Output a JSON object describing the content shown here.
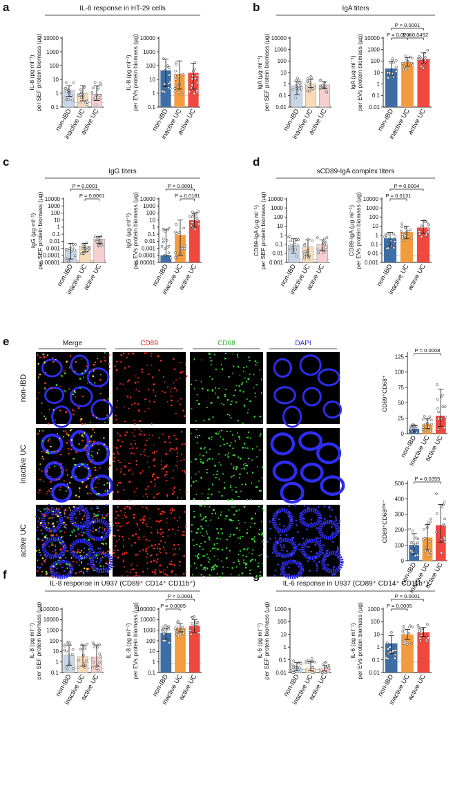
{
  "colors": {
    "nonibd": "#3d6fa6",
    "inactive": "#f39c3f",
    "active": "#f0473f",
    "nonibd_light": "#c7d6e8",
    "inactive_light": "#f9dcb7",
    "active_light": "#f7cfcf"
  },
  "panels": [
    {
      "id": "a",
      "letter": "a",
      "title": "IL-8 response in HT-29 cells"
    },
    {
      "id": "b",
      "letter": "b",
      "title": "IgA titers"
    },
    {
      "id": "c",
      "letter": "c",
      "title": "IgG titers"
    },
    {
      "id": "d",
      "letter": "d",
      "title": "sCD89-IgA complex titers"
    },
    {
      "id": "e",
      "letter": "e",
      "title": ""
    },
    {
      "id": "f",
      "letter": "f",
      "title": "IL-8 response in U937 (CD89⁺ CD14⁺ CD11b⁺)"
    },
    {
      "id": "g",
      "letter": "g",
      "title": "IL-6 response in U937 (CD89⁺ CD14⁺ CD11b⁺)"
    }
  ],
  "microscopy": {
    "columns": [
      {
        "label": "Merge",
        "color": "#111111"
      },
      {
        "label": "CD89",
        "color": "#e0241b"
      },
      {
        "label": "CD68",
        "color": "#2fb52f"
      },
      {
        "label": "DAPI",
        "color": "#2a2ae0"
      }
    ],
    "rows": [
      "non-IBD",
      "inactive UC",
      "active UC"
    ]
  },
  "chart_data": [
    {
      "id": "a1",
      "type": "bar",
      "scale": "log",
      "categories": [
        "non-IBD",
        "inactive UC",
        "active UC"
      ],
      "values": [
        1.6,
        0.95,
        0.85
      ],
      "err_low": [
        0.6,
        0.28,
        0.3
      ],
      "err_high": [
        3.5,
        3.5,
        3.5
      ],
      "filled": false,
      "yticks": [
        "0.1",
        "1",
        "10",
        "100",
        "1000",
        "10000"
      ],
      "ylim": [
        0.1,
        10000
      ],
      "ylabel_lines": [
        "IL-8 (pg ml⁻¹)",
        "per SEF protein biomass (µg)"
      ],
      "threshold": 0.22,
      "pvalues": []
    },
    {
      "id": "a2",
      "type": "bar",
      "scale": "log",
      "categories": [
        "non-IBD",
        "inactive UC",
        "active UC"
      ],
      "values": [
        45,
        25,
        30
      ],
      "err_low": [
        3,
        2,
        2
      ],
      "err_high": [
        300,
        220,
        150
      ],
      "filled": true,
      "yticks": [
        "0.1",
        "1",
        "10",
        "100",
        "1000",
        "10000"
      ],
      "ylim": [
        0.1,
        10000
      ],
      "ylabel_lines": [
        "IL-8 (pg ml⁻¹)",
        "per EVs protein biomass (µg)"
      ],
      "threshold": 0.7,
      "pvalues": []
    },
    {
      "id": "b1",
      "type": "bar",
      "scale": "log",
      "categories": [
        "non-IBD",
        "inactive UC",
        "active UC"
      ],
      "values": [
        0.7,
        1.0,
        0.85
      ],
      "err_low": [
        0.12,
        0.5,
        0.4
      ],
      "err_high": [
        1.8,
        2.5,
        1.5
      ],
      "filled": false,
      "yticks": [
        "0.01",
        "0.1",
        "1",
        "10",
        "100",
        "1000",
        "10000"
      ],
      "ylim": [
        0.01,
        10000
      ],
      "ylabel_lines": [
        "IgA (µg ml⁻¹)",
        "per SEF protein biomass (µg)"
      ],
      "threshold": null,
      "pvalues": []
    },
    {
      "id": "b2",
      "type": "bar",
      "scale": "log",
      "categories": [
        "non-IBD",
        "inactive UC",
        "active UC"
      ],
      "values": [
        22,
        80,
        150
      ],
      "err_low": [
        6,
        35,
        60
      ],
      "err_high": [
        90,
        200,
        500
      ],
      "filled": true,
      "yticks": [
        "0.01",
        "0.1",
        "1",
        "10",
        "100",
        "1000",
        "10000"
      ],
      "ylim": [
        0.01,
        10000
      ],
      "ylabel_lines": [
        "IgA (µg ml⁻¹)",
        "per EVs protein biomass (µg)"
      ],
      "threshold": null,
      "pvalues": [
        {
          "from": 0,
          "to": 2,
          "level": 2,
          "text": "P < 0.0001"
        },
        {
          "from": 0,
          "to": 1,
          "level": 1,
          "text": "P = 0.0205"
        },
        {
          "from": 1,
          "to": 2,
          "level": 1,
          "text": "P = 0.0452"
        }
      ]
    },
    {
      "id": "c1",
      "type": "bar",
      "scale": "log",
      "categories": [
        "non-IBD",
        "inactive UC",
        "active UC"
      ],
      "values": [
        0.0006,
        0.002,
        0.02
      ],
      "err_low": [
        3e-05,
        0.0003,
        0.005
      ],
      "err_high": [
        0.005,
        0.005,
        0.05
      ],
      "filled": false,
      "yticks": [
        "0.00001",
        "0.0001",
        "0.001",
        "0.01",
        "0.1",
        "1",
        "10",
        "100",
        "1000",
        "10000"
      ],
      "ylim": [
        1e-05,
        10000
      ],
      "ylabel_lines": [
        "IgG (µg ml⁻¹)",
        "per SEF protein biomass (µg)"
      ],
      "threshold": 1.8e-05,
      "pvalues": [
        {
          "from": 0,
          "to": 2,
          "level": 2,
          "text": "P = 0.0001"
        },
        {
          "from": 1,
          "to": 2,
          "level": 1,
          "text": "P = 0.0061"
        }
      ]
    },
    {
      "id": "c2",
      "type": "bar",
      "scale": "log",
      "categories": [
        "non-IBD",
        "inactive UC",
        "active UC"
      ],
      "values": [
        0.0001,
        0.08,
        10
      ],
      "err_low": [
        0.0001,
        0.0001,
        1
      ],
      "err_high": [
        0.5,
        10,
        100
      ],
      "filled": true,
      "yticks": [
        "0.00001",
        "0.0001",
        "0.001",
        "0.01",
        "0.1",
        "1",
        "10",
        "100",
        "1000",
        "10000"
      ],
      "ylim": [
        1e-05,
        10000
      ],
      "ylabel_lines": [
        "IgG (µg ml⁻¹)",
        "per EVs protein biomass (µg)"
      ],
      "threshold": null,
      "pvalues": [
        {
          "from": 0,
          "to": 2,
          "level": 2,
          "text": "P < 0.0001"
        },
        {
          "from": 1,
          "to": 2,
          "level": 1,
          "text": "P = 0.0181"
        }
      ]
    },
    {
      "id": "d1",
      "type": "bar",
      "scale": "log",
      "categories": [
        "non-IBD",
        "inactive UC",
        "active UC"
      ],
      "values": [
        0.08,
        0.05,
        0.1
      ],
      "err_low": [
        0.01,
        0.005,
        0.02
      ],
      "err_high": [
        0.4,
        0.3,
        0.3
      ],
      "filled": false,
      "yticks": [
        "0.001",
        "0.01",
        "0.1",
        "1",
        "10",
        "100",
        "1000",
        "10000"
      ],
      "ylim": [
        0.001,
        10000
      ],
      "ylabel_lines": [
        "CD89-IgA (µg ml⁻¹)",
        "per SEF protein biomass (µg)"
      ],
      "threshold": 0.0022,
      "pvalues": []
    },
    {
      "id": "d2",
      "type": "bar",
      "scale": "log",
      "categories": [
        "non-IBD",
        "inactive UC",
        "active UC"
      ],
      "values": [
        0.45,
        2.2,
        7
      ],
      "err_low": [
        0.05,
        0.4,
        1.5
      ],
      "err_high": [
        2,
        10,
        40
      ],
      "filled": true,
      "yticks": [
        "0.001",
        "0.01",
        "0.1",
        "1",
        "10",
        "100",
        "1000",
        "10000"
      ],
      "ylim": [
        0.001,
        10000
      ],
      "ylabel_lines": [
        "CD89-IgA (µg ml⁻¹)",
        "per EVs protein biomass (µg)"
      ],
      "threshold": 0.0065,
      "pvalues": [
        {
          "from": 0,
          "to": 2,
          "level": 2,
          "text": "P = 0.0004"
        },
        {
          "from": 0,
          "to": 1,
          "level": 1,
          "text": "P = 0.0131"
        }
      ]
    },
    {
      "id": "e1",
      "type": "bar",
      "scale": "linear",
      "categories": [
        "non-IBD",
        "inactive UC",
        "active UC"
      ],
      "values": [
        8,
        16,
        29
      ],
      "err_low": [
        3,
        8,
        12
      ],
      "err_high": [
        13,
        24,
        72
      ],
      "filled": true,
      "yticks": [
        "0",
        "25",
        "50",
        "75",
        "100",
        "125"
      ],
      "ylim": [
        0,
        130
      ],
      "ylabel_lines": [
        "CD89⁺CD68⁺"
      ],
      "threshold": null,
      "pvalues": [
        {
          "from": 0,
          "to": 2,
          "level": 1,
          "text": "P = 0.0008"
        }
      ]
    },
    {
      "id": "e2",
      "type": "bar",
      "scale": "linear",
      "categories": [
        "non-IBD",
        "inactive UC",
        "active UC"
      ],
      "values": [
        102,
        150,
        230
      ],
      "err_low": [
        40,
        70,
        120
      ],
      "err_high": [
        175,
        235,
        365
      ],
      "filled": true,
      "yticks": [
        "0",
        "100",
        "200",
        "300",
        "400",
        "500"
      ],
      "ylim": [
        0,
        510
      ],
      "ylabel_lines": [
        "CD89⁺CD68ᵈⁱᵐ⁻"
      ],
      "threshold": null,
      "pvalues": [
        {
          "from": 0,
          "to": 2,
          "level": 1,
          "text": "P = 0.0355"
        }
      ]
    },
    {
      "id": "f1",
      "type": "bar",
      "scale": "log",
      "categories": [
        "non-IBD",
        "inactive UC",
        "active UC"
      ],
      "values": [
        4.5,
        3.2,
        3.0
      ],
      "err_low": [
        0.5,
        0.4,
        0.4
      ],
      "err_high": [
        40,
        40,
        40
      ],
      "filled": false,
      "yticks": [
        "0.1",
        "1",
        "10",
        "100",
        "1000",
        "10000",
        "100000"
      ],
      "ylim": [
        0.1,
        100000
      ],
      "ylabel_lines": [
        "IL-8 (pg ml⁻¹)",
        "per SEF protein biomass (µg)"
      ],
      "threshold": 0.22,
      "pvalues": []
    },
    {
      "id": "f2",
      "type": "bar",
      "scale": "log",
      "categories": [
        "non-IBD",
        "inactive UC",
        "active UC"
      ],
      "values": [
        550,
        1700,
        2600
      ],
      "err_low": [
        150,
        700,
        600
      ],
      "err_high": [
        1500,
        4000,
        10000
      ],
      "filled": true,
      "yticks": [
        "0.1",
        "1",
        "10",
        "100",
        "1000",
        "10000",
        "100000"
      ],
      "ylim": [
        0.1,
        100000
      ],
      "ylabel_lines": [
        "IL-8 (pg ml⁻¹)",
        "per EVs protein biomass (µg)"
      ],
      "threshold": 0.7,
      "pvalues": [
        {
          "from": 0,
          "to": 2,
          "level": 2,
          "text": "P < 0.0001"
        },
        {
          "from": 0,
          "to": 1,
          "level": 1,
          "text": "P = 0.0005"
        }
      ]
    },
    {
      "id": "g1",
      "type": "bar",
      "scale": "log",
      "categories": [
        "non-IBD",
        "inactive UC",
        "active UC"
      ],
      "values": [
        0.022,
        0.022,
        0.022
      ],
      "err_low": [
        0.014,
        0.014,
        0.014
      ],
      "err_high": [
        0.06,
        0.07,
        0.035
      ],
      "filled": false,
      "yticks": [
        "0.01",
        "0.1",
        "1",
        "10",
        "100",
        "1000"
      ],
      "ylim": [
        0.01,
        1000
      ],
      "ylabel_lines": [
        "IL-6 (pg ml⁻¹)",
        "per SEF protein biomass (µg)"
      ],
      "threshold": 0.018,
      "pvalues": []
    },
    {
      "id": "g2",
      "type": "bar",
      "scale": "log",
      "categories": [
        "non-IBD",
        "inactive UC",
        "active UC"
      ],
      "values": [
        2,
        10,
        15
      ],
      "err_low": [
        0.3,
        4,
        7
      ],
      "err_high": [
        8,
        25,
        35
      ],
      "filled": true,
      "yticks": [
        "0.01",
        "0.1",
        "1",
        "10",
        "100",
        "1000"
      ],
      "ylim": [
        0.01,
        1000
      ],
      "ylabel_lines": [
        "IL-6 (pg ml⁻¹)",
        "per EVs protein biomass (µg)"
      ],
      "threshold": 0.07,
      "pvalues": [
        {
          "from": 0,
          "to": 2,
          "level": 2,
          "text": "P < 0.0001"
        },
        {
          "from": 0,
          "to": 1,
          "level": 1,
          "text": "P = 0.0005"
        }
      ]
    }
  ]
}
